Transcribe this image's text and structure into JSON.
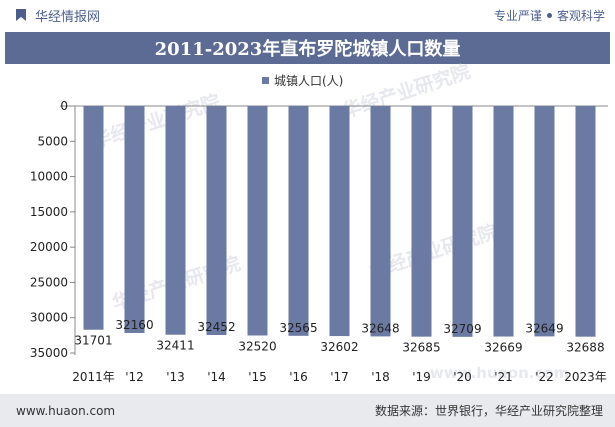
{
  "header": {
    "site_name": "华经情报网",
    "tag1": "专业严谨",
    "tag2": "客观科学",
    "logo_icon": "bookmark-logo-icon"
  },
  "watermarks": [
    "华经产业研究院",
    "华经产业研究院",
    "华经产业研究院",
    "华经产业研究院",
    "www.huaon.com"
  ],
  "footer": {
    "website": "www.huaon.com",
    "source": "数据来源：世界银行，华经产业研究院整理"
  },
  "colors": {
    "bar": "#6a7aa3",
    "banner": "#5b6b93",
    "footer": "#e9eaee"
  },
  "chart_data": {
    "type": "bar",
    "title": "2011-2023年直布罗陀城镇人口数量",
    "categories": [
      "2011年",
      "'12",
      "'13",
      "'14",
      "'15",
      "'16",
      "'17",
      "'18",
      "'19",
      "'20",
      "'21",
      "'22",
      "2023年"
    ],
    "series": [
      {
        "name": "城镇人口(人)",
        "values": [
          31701,
          32160,
          32411,
          32452,
          32520,
          32565,
          32602,
          32648,
          32685,
          32709,
          32669,
          32649,
          32688
        ]
      }
    ],
    "ylim": [
      0,
      35000
    ],
    "y_ticks": [
      0,
      5000,
      10000,
      15000,
      20000,
      25000,
      30000,
      35000
    ],
    "y_inverted": true,
    "legend_position": "top-center",
    "grid": false
  }
}
